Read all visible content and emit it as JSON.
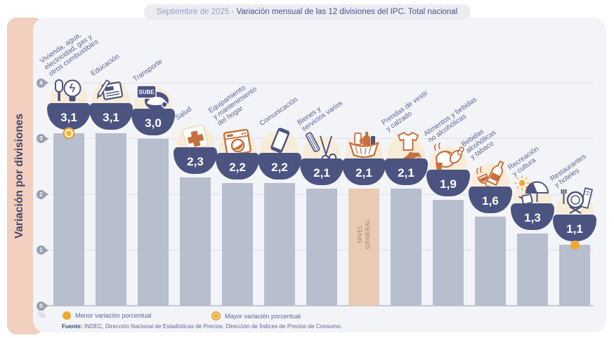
{
  "title": {
    "prefix": "Septiembre de 2025 - ",
    "main": "Variación mensual de las 12 divisiones del IPC. Total nacional"
  },
  "sidebar": {
    "label": "Variación por divisiones"
  },
  "axis": {
    "unit_label": "%"
  },
  "legend": [
    {
      "marker": "solid-dot",
      "label": "Menor variación porcentual"
    },
    {
      "marker": "ring-dot",
      "label": "Mayor variación porcentual"
    }
  ],
  "source": {
    "bold": "Fuente:",
    "text": " INDEC, Dirección Nacional de Estadísticas de Precios. Dirección de Índices de Precios de Consumo."
  },
  "colors": {
    "navy": "#4b5480",
    "orange": "#c8703d",
    "bar": "#b7bece",
    "bar_highlight": "#e9cab4",
    "panel_bg": "#f3f4f7",
    "sidebar_pink": "#f2cfbf",
    "icon_circle": "#f8ecd8",
    "dot_yellow": "#f0a92f",
    "ring_orange": "#e7a030",
    "label_text": "#5b6398"
  },
  "chart_data": {
    "type": "bar",
    "title": "Septiembre de 2025 - Variación mensual de las 12 divisiones del IPC. Total nacional",
    "xlabel": "",
    "ylabel": "Variación por divisiones",
    "y_unit": "%",
    "ylim": [
      0,
      4
    ],
    "y_ticks": [
      4,
      3,
      2,
      1,
      0
    ],
    "grid": true,
    "legend_position": "bottom",
    "series": [
      {
        "name": "Vivienda, agua, electricidad, gas y otros combustibles",
        "value": 3.1,
        "display": "3,1",
        "label_lines": [
          "Vivienda, agua,",
          "electricidad, gas y",
          "otros combustibles"
        ],
        "icon": "lightbulb-tools-icon",
        "marker": "mayor"
      },
      {
        "name": "Educación",
        "value": 3.1,
        "display": "3,1",
        "label_lines": [
          "Educación"
        ],
        "icon": "notebook-pencil-icon"
      },
      {
        "name": "Transporte",
        "value": 3.0,
        "display": "3,0",
        "label_lines": [
          "Transporte"
        ],
        "icon": "sube-card-car-icon",
        "icon_text": "SUBE"
      },
      {
        "name": "Salud",
        "value": 2.3,
        "display": "2,3",
        "label_lines": [
          "Salud"
        ],
        "icon": "medical-cross-icon"
      },
      {
        "name": "Equipamiento y mantenimiento del hogar",
        "value": 2.2,
        "display": "2,2",
        "label_lines": [
          "Equipamiento",
          "y mantenimiento",
          "del hogar"
        ],
        "icon": "washing-machine-icon"
      },
      {
        "name": "Comunicación",
        "value": 2.2,
        "display": "2,2",
        "label_lines": [
          "Comunicación"
        ],
        "icon": "smartphone-icon"
      },
      {
        "name": "Bienes y servicios varios",
        "value": 2.1,
        "display": "2,1",
        "label_lines": [
          "Bienes y",
          "servicios varios"
        ],
        "icon": "scissors-comb-icon"
      },
      {
        "name": "Nivel general",
        "value": 2.1,
        "display": "2,1",
        "label_lines": [],
        "icon": "shopping-basket-icon",
        "highlight": true,
        "bar_text": [
          "NIVEL",
          "GENERAL"
        ]
      },
      {
        "name": "Prendas de vestir y calzado",
        "value": 2.1,
        "display": "2,1",
        "label_lines": [
          "Prendas de vestir",
          "y calzado"
        ],
        "icon": "tshirt-shoe-icon"
      },
      {
        "name": "Alimentos y bebidas no alcohólicas",
        "value": 1.9,
        "display": "1,9",
        "label_lines": [
          "Alimentos y bebidas",
          "no alcohólicas"
        ],
        "icon": "roast-chicken-icon"
      },
      {
        "name": "Bebidas alcohólicas y tabaco",
        "value": 1.6,
        "display": "1,6",
        "label_lines": [
          "Bebidas",
          "alcohólicas",
          "y tabaco"
        ],
        "icon": "wine-bottle-glass-icon"
      },
      {
        "name": "Recreación y cultura",
        "value": 1.3,
        "display": "1,3",
        "label_lines": [
          "Recreación",
          "y cultura"
        ],
        "icon": "umbrella-sun-icon"
      },
      {
        "name": "Restaurantes y hoteles",
        "value": 1.1,
        "display": "1,1",
        "label_lines": [
          "Restaurantes",
          "y hoteles"
        ],
        "icon": "fork-plate-icon",
        "marker": "menor"
      }
    ]
  }
}
